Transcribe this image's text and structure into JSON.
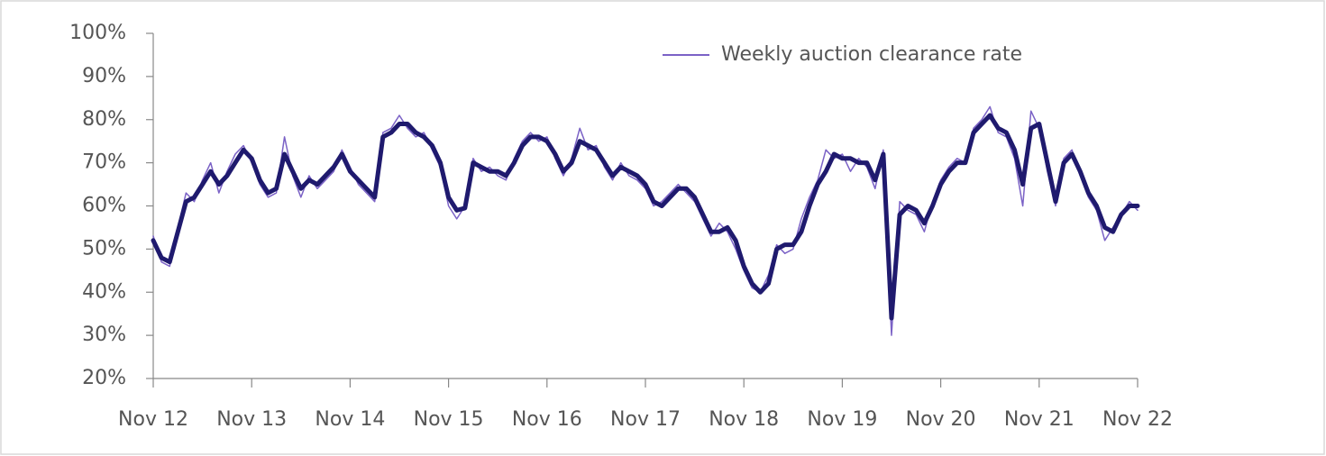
{
  "chart_data": {
    "type": "line",
    "categories": [
      "Nov 12",
      null,
      null,
      null,
      null,
      null,
      null,
      null,
      null,
      null,
      null,
      null,
      "Nov 13",
      null,
      null,
      null,
      null,
      null,
      null,
      null,
      null,
      null,
      null,
      null,
      "Nov 14",
      null,
      null,
      null,
      null,
      null,
      null,
      null,
      null,
      null,
      null,
      null,
      "Nov 15",
      null,
      null,
      null,
      null,
      null,
      null,
      null,
      null,
      null,
      null,
      null,
      "Nov 16",
      null,
      null,
      null,
      null,
      null,
      null,
      null,
      null,
      null,
      null,
      null,
      "Nov 17",
      null,
      null,
      null,
      null,
      null,
      null,
      null,
      null,
      null,
      null,
      null,
      "Nov 18",
      null,
      null,
      null,
      null,
      null,
      null,
      null,
      null,
      null,
      null,
      null,
      "Nov 19",
      null,
      null,
      null,
      null,
      null,
      null,
      null,
      null,
      null,
      null,
      null,
      "Nov 20",
      null,
      null,
      null,
      null,
      null,
      null,
      null,
      null,
      null,
      null,
      null,
      "Nov 21",
      null,
      null,
      null,
      null,
      null,
      null,
      null,
      null,
      null,
      null,
      null,
      "Nov 22"
    ],
    "series": [
      {
        "name": "Weekly auction clearance rate",
        "color": "#7b62c6",
        "width": 1.5,
        "values": [
          53,
          47,
          46,
          55,
          63,
          61,
          66,
          70,
          63,
          68,
          72,
          74,
          70,
          65,
          62,
          63,
          76,
          67,
          62,
          67,
          64,
          66,
          68,
          73,
          69,
          65,
          63,
          61,
          77,
          78,
          81,
          78,
          76,
          77,
          73,
          69,
          60,
          57,
          60,
          71,
          68,
          69,
          67,
          66,
          71,
          75,
          77,
          75,
          76,
          71,
          67,
          71,
          78,
          73,
          74,
          69,
          66,
          70,
          67,
          66,
          64,
          60,
          61,
          63,
          65,
          63,
          61,
          57,
          53,
          56,
          54,
          50,
          45,
          41,
          40,
          44,
          51,
          49,
          50,
          57,
          62,
          66,
          73,
          71,
          72,
          68,
          71,
          69,
          64,
          73,
          30,
          61,
          59,
          58,
          54,
          61,
          66,
          69,
          71,
          70,
          78,
          80,
          83,
          77,
          76,
          71,
          60,
          82,
          78,
          68,
          60,
          71,
          73,
          67,
          62,
          59,
          52,
          55,
          58,
          61,
          59
        ]
      },
      {
        "color": "#1f1a6e",
        "width": 5,
        "values": [
          52,
          48,
          47,
          54,
          61,
          62,
          65,
          68,
          65,
          67,
          70,
          73,
          71,
          66,
          63,
          64,
          72,
          68,
          64,
          66,
          65,
          67,
          69,
          72,
          68,
          66,
          64,
          62,
          76,
          77,
          79,
          79,
          77,
          76,
          74,
          70,
          62,
          59,
          59.5,
          70,
          69,
          68,
          68,
          67,
          70,
          74,
          76,
          76,
          75,
          72,
          68,
          70,
          75,
          74,
          73,
          70,
          67,
          69,
          68,
          67,
          65,
          61,
          60,
          62,
          64,
          64,
          62,
          58,
          54,
          54,
          55,
          52,
          46,
          42,
          40,
          42,
          50,
          51,
          51,
          54,
          60,
          65,
          68,
          72,
          71,
          71,
          70,
          70,
          66,
          72,
          34,
          58,
          60,
          59,
          56,
          60,
          65,
          68,
          70,
          70,
          77,
          79,
          81,
          78,
          77,
          73,
          65,
          78,
          79,
          70,
          61,
          70,
          72,
          68,
          63,
          60,
          55,
          54,
          58,
          60,
          60
        ]
      }
    ],
    "ylim": [
      20,
      100
    ],
    "yticks": [
      {
        "value": 20,
        "label": "20%"
      },
      {
        "value": 30,
        "label": "30%"
      },
      {
        "value": 40,
        "label": "40%"
      },
      {
        "value": 50,
        "label": "50%"
      },
      {
        "value": 60,
        "label": "60%"
      },
      {
        "value": 70,
        "label": "70%"
      },
      {
        "value": 80,
        "label": "80%"
      },
      {
        "value": 90,
        "label": "90%"
      },
      {
        "value": 100,
        "label": "100%"
      }
    ],
    "grid": false,
    "legend": "top-right"
  }
}
